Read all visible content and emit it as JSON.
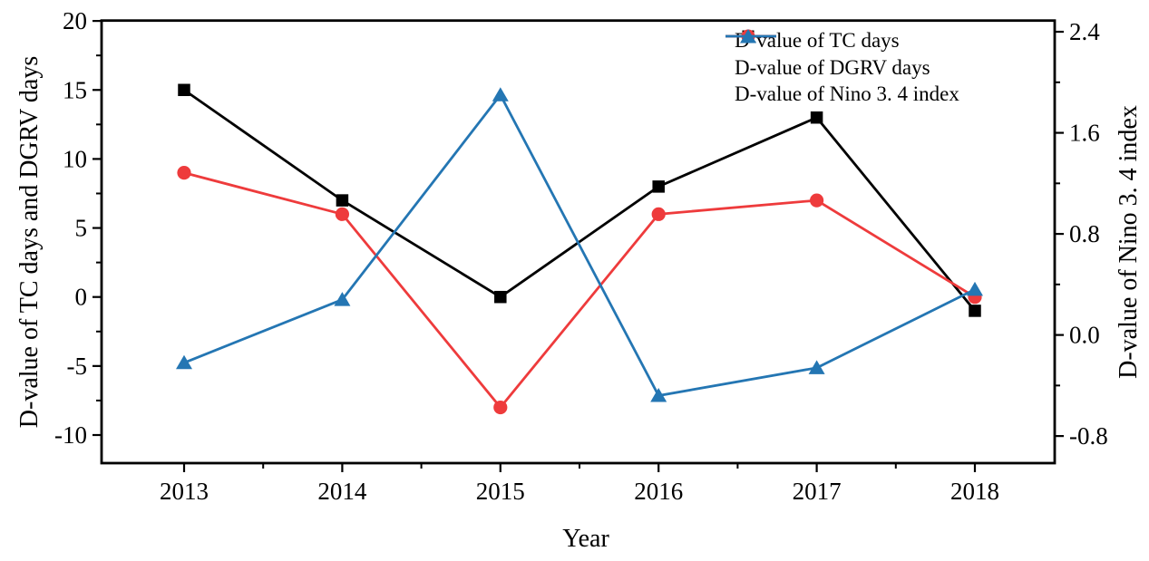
{
  "chart_data": {
    "type": "line",
    "title": "",
    "xlabel": "Year",
    "ylabel_left": "D-value of TC days and DGRV days",
    "ylabel_right": "D-value of Nino 3. 4 index",
    "x_categories": [
      "2013",
      "2014",
      "2015",
      "2016",
      "2017",
      "2018"
    ],
    "left_axis": {
      "major_labels": [
        "20",
        "15",
        "10",
        "5",
        "0",
        "-5",
        "-10"
      ],
      "major_values": [
        20,
        15,
        10,
        5,
        0,
        -5,
        -10
      ],
      "minor_values": [
        17.5,
        12.5,
        7.5,
        2.5,
        -2.5,
        -7.5
      ],
      "range": [
        -12,
        20
      ]
    },
    "right_axis": {
      "major_labels": [
        "2.4",
        "1.6",
        "0.8",
        "0.0",
        "-0.8"
      ],
      "major_values": [
        2.4,
        1.6,
        0.8,
        0,
        -0.8
      ],
      "minor_values": [
        2.0,
        1.2,
        0.4,
        -0.4
      ],
      "range": [
        -1.01,
        2.49
      ]
    },
    "grid": "off",
    "legend_position": "top-right-inside",
    "series": [
      {
        "name": "D-value of TC days",
        "axis": "left",
        "color": "#000000",
        "marker": "square",
        "values": [
          15,
          7,
          0,
          8,
          13,
          -1
        ]
      },
      {
        "name": "D-value of DGRV days",
        "axis": "left",
        "color": "#ee3b3c",
        "marker": "circle",
        "values": [
          9,
          6,
          -8,
          6,
          7,
          0
        ]
      },
      {
        "name": "D-value of Nino 3. 4 index",
        "axis": "right",
        "color": "#2476b3",
        "marker": "triangle",
        "values": [
          -0.22,
          0.28,
          1.9,
          -0.48,
          -0.26,
          0.36
        ]
      }
    ]
  }
}
